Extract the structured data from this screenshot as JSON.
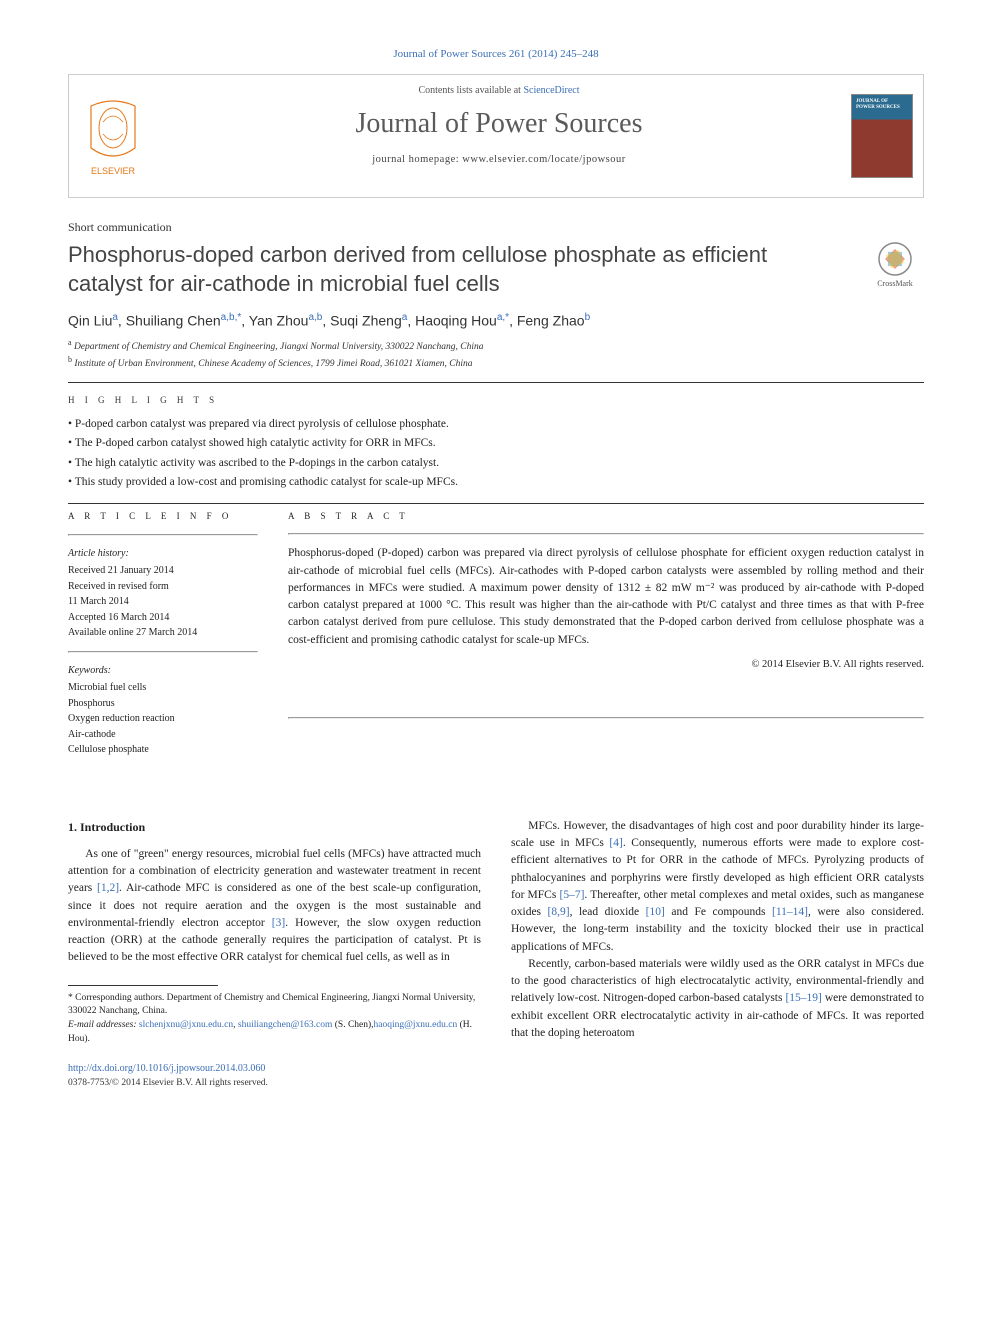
{
  "citation": "Journal of Power Sources 261 (2014) 245–248",
  "header": {
    "contents_prefix": "Contents lists available at ",
    "contents_link": "ScienceDirect",
    "journal_name": "Journal of Power Sources",
    "homepage_prefix": "journal homepage: ",
    "homepage_url": "www.elsevier.com/locate/jpowsour",
    "cover_text": "JOURNAL OF POWER SOURCES"
  },
  "article_type": "Short communication",
  "title": "Phosphorus-doped carbon derived from cellulose phosphate as efficient catalyst for air-cathode in microbial fuel cells",
  "crossmark_label": "CrossMark",
  "authors_html": "Qin Liu<sup class='sup'>a</sup>, Shuiliang Chen<sup class='sup'>a,b,*</sup>, Yan Zhou<sup class='sup'>a,b</sup>, Suqi Zheng<sup class='sup'>a</sup>, Haoqing Hou<sup class='sup'>a,*</sup>, Feng Zhao<sup class='sup'>b</sup>",
  "affiliations": [
    {
      "sup": "a",
      "text": "Department of Chemistry and Chemical Engineering, Jiangxi Normal University, 330022 Nanchang, China"
    },
    {
      "sup": "b",
      "text": "Institute of Urban Environment, Chinese Academy of Sciences, 1799 Jimei Road, 361021 Xiamen, China"
    }
  ],
  "highlights_label": "H I G H L I G H T S",
  "highlights": [
    "P-doped carbon catalyst was prepared via direct pyrolysis of cellulose phosphate.",
    "The P-doped carbon catalyst showed high catalytic activity for ORR in MFCs.",
    "The high catalytic activity was ascribed to the P-dopings in the carbon catalyst.",
    "This study provided a low-cost and promising cathodic catalyst for scale-up MFCs."
  ],
  "article_info_label": "A R T I C L E   I N F O",
  "abstract_label": "A B S T R A C T",
  "history_heading": "Article history:",
  "history": [
    "Received 21 January 2014",
    "Received in revised form",
    "11 March 2014",
    "Accepted 16 March 2014",
    "Available online 27 March 2014"
  ],
  "keywords_heading": "Keywords:",
  "keywords": [
    "Microbial fuel cells",
    "Phosphorus",
    "Oxygen reduction reaction",
    "Air-cathode",
    "Cellulose phosphate"
  ],
  "abstract": "Phosphorus-doped (P-doped) carbon was prepared via direct pyrolysis of cellulose phosphate for efficient oxygen reduction catalyst in air-cathode of microbial fuel cells (MFCs). Air-cathodes with P-doped carbon catalysts were assembled by rolling method and their performances in MFCs were studied. A maximum power density of 1312 ± 82 mW m⁻² was produced by air-cathode with P-doped carbon catalyst prepared at 1000 °C. This result was higher than the air-cathode with Pt/C catalyst and three times as that with P-free carbon catalyst derived from pure cellulose. This study demonstrated that the P-doped carbon derived from cellulose phosphate was a cost-efficient and promising cathodic catalyst for scale-up MFCs.",
  "copyright": "© 2014 Elsevier B.V. All rights reserved.",
  "intro_heading": "1. Introduction",
  "intro_left": "As one of \"green\" energy resources, microbial fuel cells (MFCs) have attracted much attention for a combination of electricity generation and wastewater treatment in recent years [1,2]. Air-cathode MFC is considered as one of the best scale-up configuration, since it does not require aeration and the oxygen is the most sustainable and environmental-friendly electron acceptor [3]. However, the slow oxygen reduction reaction (ORR) at the cathode generally requires the participation of catalyst. Pt is believed to be the most effective ORR catalyst for chemical fuel cells, as well as in",
  "intro_right_p1": "MFCs. However, the disadvantages of high cost and poor durability hinder its large-scale use in MFCs [4]. Consequently, numerous efforts were made to explore cost-efficient alternatives to Pt for ORR in the cathode of MFCs. Pyrolyzing products of phthalocyanines and porphyrins were firstly developed as high efficient ORR catalysts for MFCs [5–7]. Thereafter, other metal complexes and metal oxides, such as manganese oxides [8,9], lead dioxide [10] and Fe compounds [11–14], were also considered. However, the long-term instability and the toxicity blocked their use in practical applications of MFCs.",
  "intro_right_p2": "Recently, carbon-based materials were wildly used as the ORR catalyst in MFCs due to the good characteristics of high electrocatalytic activity, environmental-friendly and relatively low-cost. Nitrogen-doped carbon-based catalysts [15–19] were demonstrated to exhibit excellent ORR electrocatalytic activity in air-cathode of MFCs. It was reported that the doping heteroatom",
  "footnote_corr": "* Corresponding authors. Department of Chemistry and Chemical Engineering, Jiangxi Normal University, 330022 Nanchang, China.",
  "footnote_email_label": "E-mail addresses: ",
  "footnote_emails": [
    {
      "addr": "slchenjxnu@jxnu.edu.cn",
      "who": ""
    },
    {
      "addr": "shuiliangchen@163.com",
      "who": " (S. Chen),"
    },
    {
      "addr": "haoqing@jxnu.edu.cn",
      "who": " (H. Hou)."
    }
  ],
  "doi": "http://dx.doi.org/10.1016/j.jpowsour.2014.03.060",
  "issn": "0378-7753/© 2014 Elsevier B.V. All rights reserved.",
  "colors": {
    "link": "#3b6fb6",
    "text": "#222222",
    "rule": "#333333",
    "header_gray": "#5a5a5a"
  }
}
